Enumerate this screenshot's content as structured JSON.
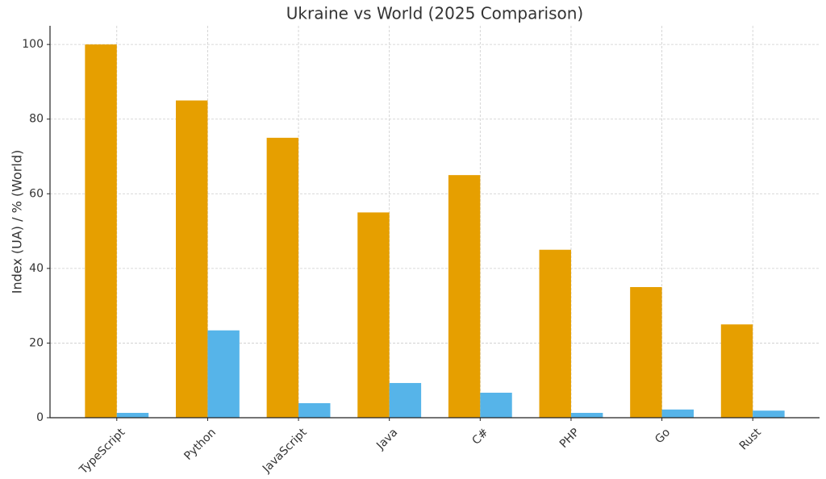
{
  "chart_data": {
    "type": "bar",
    "title": "Ukraine vs World (2025 Comparison)",
    "y_label": "Index (UA) / % (World)",
    "categories": [
      "TypeScript",
      "Python",
      "JavaScript",
      "Java",
      "C#",
      "PHP",
      "Go",
      "Rust"
    ],
    "series": [
      {
        "color": "#E69F00",
        "values": [
          100,
          85,
          75,
          55,
          65,
          45,
          35,
          25
        ]
      },
      {
        "color": "#56B4E9",
        "values": [
          1.3,
          23.4,
          3.9,
          9.3,
          6.7,
          1.3,
          2.2,
          1.9
        ]
      }
    ],
    "ylim": [
      0,
      105
    ],
    "yticks": [
      0,
      20,
      40,
      60,
      80,
      100
    ],
    "grid": true
  }
}
